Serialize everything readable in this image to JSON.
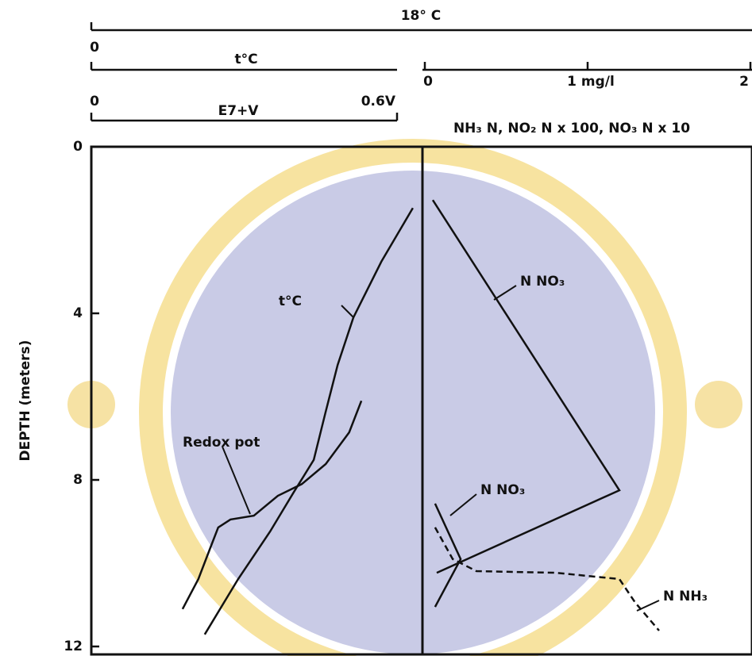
{
  "chart_data": {
    "type": "line",
    "scale_title": "18° C",
    "ylabel": "DEPTH (meters)",
    "ylim": [
      0,
      12
    ],
    "yticks": [
      0,
      4,
      8,
      12
    ],
    "y_inverted": true,
    "x_axes": {
      "t": {
        "label": "t°C",
        "xlim": [
          0,
          18
        ],
        "xticks": [
          0
        ]
      },
      "redox": {
        "label": "E7+V",
        "xlim": [
          0,
          0.6
        ],
        "xticks": [
          0,
          {
            "value": 0.6,
            "label": "0.6V"
          }
        ]
      },
      "conc": {
        "label": "NH₃ N, NO₂ N x 100, NO₃ N x 10",
        "xlim": [
          0,
          2
        ],
        "xticks": [
          0,
          {
            "value": 1,
            "label": "1 mg/l"
          },
          2
        ]
      }
    },
    "series": [
      {
        "name": "t°C",
        "axis": "t",
        "color": "#111111",
        "dashed": false,
        "values": [
          8.76,
          7.9,
          7.14,
          6.71,
          6.38,
          6.06,
          5.52,
          4.87,
          4.0,
          3.09
        ],
        "depth": [
          1.47,
          2.76,
          4.1,
          5.24,
          6.38,
          7.52,
          8.29,
          9.24,
          10.38,
          11.71
        ]
      },
      {
        "name": "Redox pot",
        "axis": "redox",
        "color": "#111111",
        "dashed": false,
        "values": [
          0.53,
          0.506,
          0.46,
          0.413,
          0.366,
          0.319,
          0.273,
          0.249,
          0.234,
          0.21,
          0.179
        ],
        "depth": [
          6.1,
          6.86,
          7.62,
          8.1,
          8.38,
          8.86,
          8.95,
          9.14,
          9.62,
          10.38,
          11.1
        ]
      },
      {
        "name": "N NO₃",
        "axis": "conc",
        "color": "#111111",
        "dashed": false,
        "values": [
          0.049,
          1.195,
          0.073
        ],
        "depth": [
          1.28,
          8.25,
          10.23
        ]
      },
      {
        "name": "N NO₃",
        "axis": "conc",
        "color": "#111111",
        "dashed": false,
        "values": [
          0.063,
          0.22,
          0.063
        ],
        "depth": [
          8.57,
          9.9,
          11.05
        ]
      },
      {
        "name": "N NH₃",
        "axis": "conc",
        "color": "#111111",
        "dashed": true,
        "values": [
          0.063,
          0.171,
          0.317,
          0.805,
          1.195,
          1.293,
          1.439
        ],
        "depth": [
          9.14,
          9.9,
          10.19,
          10.23,
          10.38,
          10.95,
          11.62
        ]
      }
    ]
  }
}
